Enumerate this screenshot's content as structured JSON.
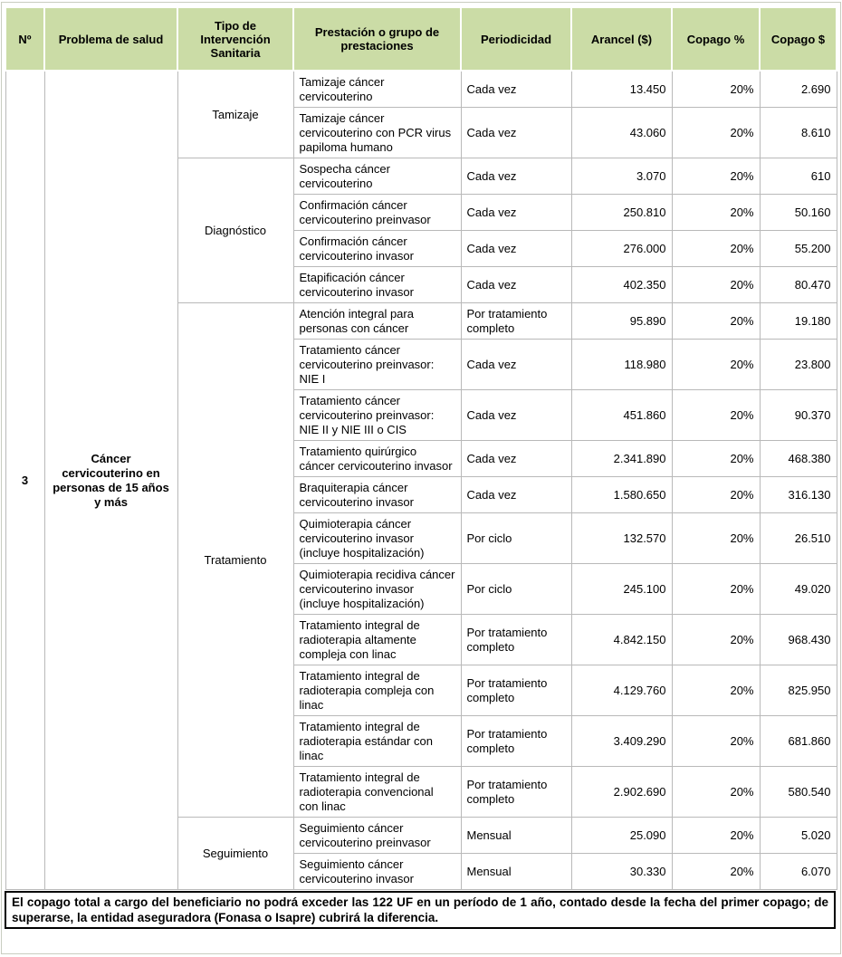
{
  "table": {
    "columns": [
      "Nº",
      "Problema de salud",
      "Tipo de Intervención Sanitaria",
      "Prestación o grupo de prestaciones",
      "Periodicidad",
      "Arancel ($)",
      "Copago %",
      "Copago $"
    ],
    "numero": "3",
    "problema_de_salud": "Cáncer cervicouterino en personas de 15 años y más",
    "groups": [
      {
        "tipo": "Tamizaje",
        "rows": [
          {
            "prestacion": "Tamizaje cáncer cervicouterino",
            "periodicidad": "Cada vez",
            "arancel": "13.450",
            "copago_pct": "20%",
            "copago": "2.690"
          },
          {
            "prestacion": "Tamizaje cáncer cervicouterino con PCR virus papiloma humano",
            "periodicidad": "Cada vez",
            "arancel": "43.060",
            "copago_pct": "20%",
            "copago": "8.610"
          }
        ]
      },
      {
        "tipo": "Diagnóstico",
        "rows": [
          {
            "prestacion": "Sospecha cáncer cervicouterino",
            "periodicidad": "Cada vez",
            "arancel": "3.070",
            "copago_pct": "20%",
            "copago": "610"
          },
          {
            "prestacion": "Confirmación cáncer cervicouterino preinvasor",
            "periodicidad": "Cada vez",
            "arancel": "250.810",
            "copago_pct": "20%",
            "copago": "50.160"
          },
          {
            "prestacion": "Confirmación cáncer cervicouterino invasor",
            "periodicidad": "Cada vez",
            "arancel": "276.000",
            "copago_pct": "20%",
            "copago": "55.200"
          },
          {
            "prestacion": "Etapificación cáncer cervicouterino invasor",
            "periodicidad": "Cada vez",
            "arancel": "402.350",
            "copago_pct": "20%",
            "copago": "80.470"
          }
        ]
      },
      {
        "tipo": "Tratamiento",
        "rows": [
          {
            "prestacion": "Atención integral para personas con cáncer",
            "periodicidad": "Por tratamiento completo",
            "arancel": "95.890",
            "copago_pct": "20%",
            "copago": "19.180"
          },
          {
            "prestacion": "Tratamiento cáncer cervicouterino preinvasor: NIE I",
            "periodicidad": "Cada vez",
            "arancel": "118.980",
            "copago_pct": "20%",
            "copago": "23.800"
          },
          {
            "prestacion": "Tratamiento cáncer cervicouterino preinvasor: NIE II y NIE III o CIS",
            "periodicidad": "Cada vez",
            "arancel": "451.860",
            "copago_pct": "20%",
            "copago": "90.370"
          },
          {
            "prestacion": "Tratamiento quirúrgico cáncer cervicouterino invasor",
            "periodicidad": "Cada vez",
            "arancel": "2.341.890",
            "copago_pct": "20%",
            "copago": "468.380"
          },
          {
            "prestacion": "Braquiterapia cáncer cervicouterino invasor",
            "periodicidad": "Cada vez",
            "arancel": "1.580.650",
            "copago_pct": "20%",
            "copago": "316.130"
          },
          {
            "prestacion": "Quimioterapia cáncer cervicouterino invasor (incluye hospitalización)",
            "periodicidad": "Por ciclo",
            "arancel": "132.570",
            "copago_pct": "20%",
            "copago": "26.510"
          },
          {
            "prestacion": "Quimioterapia recidiva cáncer cervicouterino invasor (incluye hospitalización)",
            "periodicidad": "Por ciclo",
            "arancel": "245.100",
            "copago_pct": "20%",
            "copago": "49.020"
          },
          {
            "prestacion": "Tratamiento integral de radioterapia altamente compleja con linac",
            "periodicidad": "Por tratamiento completo",
            "arancel": "4.842.150",
            "copago_pct": "20%",
            "copago": "968.430"
          },
          {
            "prestacion": "Tratamiento integral de radioterapia compleja con linac",
            "periodicidad": "Por tratamiento completo",
            "arancel": "4.129.760",
            "copago_pct": "20%",
            "copago": "825.950"
          },
          {
            "prestacion": "Tratamiento integral de radioterapia estándar con linac",
            "periodicidad": "Por tratamiento completo",
            "arancel": "3.409.290",
            "copago_pct": "20%",
            "copago": "681.860"
          },
          {
            "prestacion": "Tratamiento integral de radioterapia convencional con linac",
            "periodicidad": "Por tratamiento completo",
            "arancel": "2.902.690",
            "copago_pct": "20%",
            "copago": "580.540"
          }
        ]
      },
      {
        "tipo": "Seguimiento",
        "rows": [
          {
            "prestacion": "Seguimiento cáncer cervicouterino preinvasor",
            "periodicidad": "Mensual",
            "arancel": "25.090",
            "copago_pct": "20%",
            "copago": "5.020"
          },
          {
            "prestacion": "Seguimiento cáncer cervicouterino invasor",
            "periodicidad": "Mensual",
            "arancel": "30.330",
            "copago_pct": "20%",
            "copago": "6.070"
          }
        ]
      }
    ]
  },
  "footer": {
    "text": "El copago total a cargo del beneficiario no podrá exceder las 122 UF en un período de 1 año, contado desde la fecha del primer copago; de superarse, la entidad aseguradora (Fonasa o Isapre) cubrirá la diferencia."
  },
  "colors": {
    "header_bg": "#cbdca6",
    "grid_border": "#b9b9b9",
    "footer_border": "#000000"
  }
}
